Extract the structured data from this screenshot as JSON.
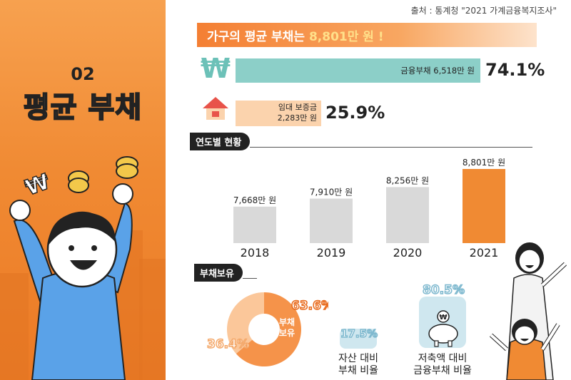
{
  "source": "출처 : 통계청 \"2021 가계금융복지조사\"",
  "section": {
    "number": "02",
    "title": "평균 부채"
  },
  "headline": {
    "prefix": "가구의 평균 부채는",
    "amount": "8,801만 원 !"
  },
  "composition": {
    "financial_debt": {
      "label": "금융부채 6,518만 원",
      "percent": "74.1%",
      "share": 0.741
    },
    "lease_deposit": {
      "label_line1": "임대 보증금",
      "label_line2": "2,283만 원",
      "percent": "25.9%",
      "share": 0.259
    }
  },
  "yearly": {
    "section_label": "연도별 현황"
  },
  "holding": {
    "section_label": "부채보유",
    "donut_label": "부채 보유",
    "debt_to_assets": {
      "percent": "17.5%",
      "label_line1": "자산 대비",
      "label_line2": "부채 비율"
    },
    "savings_to_debt": {
      "percent": "80.5%",
      "label_line1": "저축액 대비",
      "label_line2": "금융부채 비율"
    }
  },
  "colors": {
    "orange": "#f08a33",
    "gray_bar": "#d9d9d9",
    "teal": "#8ccfc8",
    "peach": "#fbd3ad",
    "donut_dark": "#f5934a",
    "donut_light": "#fbc79a",
    "light_blue": "#cfe7ef"
  },
  "icons": [
    "won-icon",
    "house-icon",
    "piggy-bank-icon",
    "coin-icon"
  ],
  "chart_data": [
    {
      "type": "bar",
      "categories": [
        "2018",
        "2019",
        "2020",
        "2021"
      ],
      "values": [
        7668,
        7910,
        8256,
        8801
      ],
      "value_labels": [
        "7,668만 원",
        "7,910만 원",
        "8,256만 원",
        "8,801만 원"
      ],
      "highlight_index": 3,
      "title": "연도별 현황",
      "xlabel": "",
      "ylabel": "",
      "ylim": [
        0,
        8801
      ]
    },
    {
      "type": "pie",
      "labels": [
        "부채 보유",
        ""
      ],
      "values": [
        63.6,
        36.4
      ],
      "value_labels": [
        "63.6%",
        "36.4%"
      ],
      "title": "부채보유"
    }
  ]
}
